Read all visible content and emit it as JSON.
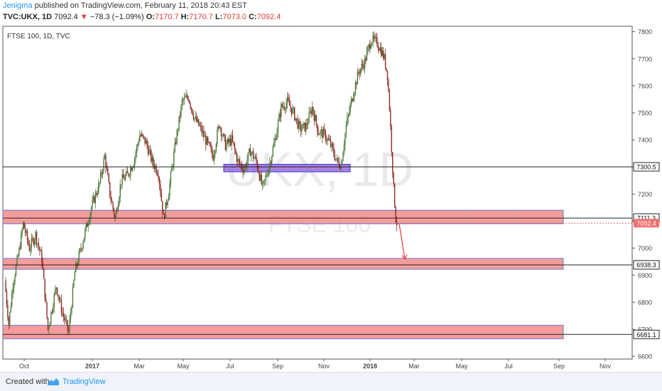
{
  "header": {
    "author": "Jenigma",
    "published": "published on TradingView.com, February 11, 2018 20:43 EST",
    "symbol": "TVC:UKX, 1D",
    "last": "7092.4",
    "change": "−78.3 (−1.09%)",
    "o_label": "O:",
    "o": "7170.7",
    "h_label": "H:",
    "h": "7170.7",
    "l_label": "L:",
    "l": "7073.0",
    "c_label": "C:",
    "c": "7092.4"
  },
  "footer": {
    "created": "Created with",
    "brand": "TradingView"
  },
  "chart_data": {
    "type": "candlestick",
    "title": "FTSE 100, 1D, TVC",
    "watermark": [
      "UKX, 1D",
      "FTSE 100"
    ],
    "ylim": [
      6590,
      7820
    ],
    "y_ticks": [
      6600,
      6700,
      6800,
      6900,
      7000,
      7100,
      7200,
      7300,
      7400,
      7500,
      7600,
      7700,
      7800
    ],
    "x_ticks": [
      "Oct",
      "2017",
      "Mar",
      "May",
      "Jul",
      "Sep",
      "Nov",
      "2018",
      "Mar",
      "May",
      "Jul",
      "Sep",
      "Nov"
    ],
    "x_tick_bold": [
      "2017",
      "2018"
    ],
    "price_path": [
      [
        0,
        6880
      ],
      [
        4,
        6720
      ],
      [
        8,
        6870
      ],
      [
        14,
        6990
      ],
      [
        18,
        7090
      ],
      [
        24,
        7000
      ],
      [
        30,
        7050
      ],
      [
        36,
        6960
      ],
      [
        42,
        6700
      ],
      [
        50,
        6860
      ],
      [
        56,
        6760
      ],
      [
        62,
        6690
      ],
      [
        68,
        6910
      ],
      [
        76,
        7030
      ],
      [
        84,
        7150
      ],
      [
        92,
        7240
      ],
      [
        97,
        7340
      ],
      [
        102,
        7200
      ],
      [
        107,
        7110
      ],
      [
        113,
        7250
      ],
      [
        119,
        7270
      ],
      [
        125,
        7320
      ],
      [
        131,
        7420
      ],
      [
        137,
        7390
      ],
      [
        143,
        7320
      ],
      [
        149,
        7280
      ],
      [
        154,
        7110
      ],
      [
        159,
        7210
      ],
      [
        166,
        7400
      ],
      [
        172,
        7540
      ],
      [
        178,
        7560
      ],
      [
        184,
        7480
      ],
      [
        190,
        7440
      ],
      [
        196,
        7390
      ],
      [
        202,
        7340
      ],
      [
        208,
        7460
      ],
      [
        214,
        7380
      ],
      [
        220,
        7400
      ],
      [
        226,
        7320
      ],
      [
        232,
        7290
      ],
      [
        238,
        7360
      ],
      [
        244,
        7320
      ],
      [
        250,
        7220
      ],
      [
        256,
        7300
      ],
      [
        262,
        7400
      ],
      [
        268,
        7520
      ],
      [
        274,
        7540
      ],
      [
        280,
        7500
      ],
      [
        286,
        7440
      ],
      [
        292,
        7450
      ],
      [
        298,
        7520
      ],
      [
        304,
        7430
      ],
      [
        310,
        7420
      ],
      [
        316,
        7380
      ],
      [
        322,
        7320
      ],
      [
        326,
        7310
      ],
      [
        331,
        7450
      ],
      [
        337,
        7560
      ],
      [
        343,
        7650
      ],
      [
        349,
        7690
      ],
      [
        355,
        7770
      ],
      [
        361,
        7760
      ],
      [
        365,
        7730
      ],
      [
        368,
        7700
      ],
      [
        371,
        7640
      ],
      [
        373,
        7520
      ],
      [
        375,
        7370
      ],
      [
        377,
        7220
      ],
      [
        379,
        7111
      ],
      [
        380,
        7092
      ]
    ],
    "last_price": 7092.4,
    "zones": [
      {
        "name": "support-zone-7111",
        "from": 7090,
        "to": 7140,
        "color": "#f28b8b"
      },
      {
        "name": "support-zone-6938",
        "from": 6922,
        "to": 6962,
        "color": "#f28b8b"
      },
      {
        "name": "support-zone-6681",
        "from": 6665,
        "to": 6715,
        "color": "#f28b8b"
      },
      {
        "name": "resistance-zone-7300",
        "from": 7282,
        "to": 7310,
        "color": "#9b6bd8"
      }
    ],
    "levels": [
      {
        "name": "level-7300",
        "value": 7300.5,
        "label": "7300.5"
      },
      {
        "name": "level-7111",
        "value": 7111.3,
        "label": "7111.3"
      },
      {
        "name": "level-6938",
        "value": 6938.3,
        "label": "6938.3"
      },
      {
        "name": "level-6681",
        "value": 6681.1,
        "label": "6681.1"
      }
    ],
    "current_price_label": "7092.4",
    "arrow": {
      "from_value": 7090,
      "to_value": 6960
    },
    "colors": {
      "up": "#4a7b3a",
      "down": "#8b2e26",
      "zone_border": "#b06070",
      "axis": "#444444",
      "price_label": "#f07070"
    }
  }
}
